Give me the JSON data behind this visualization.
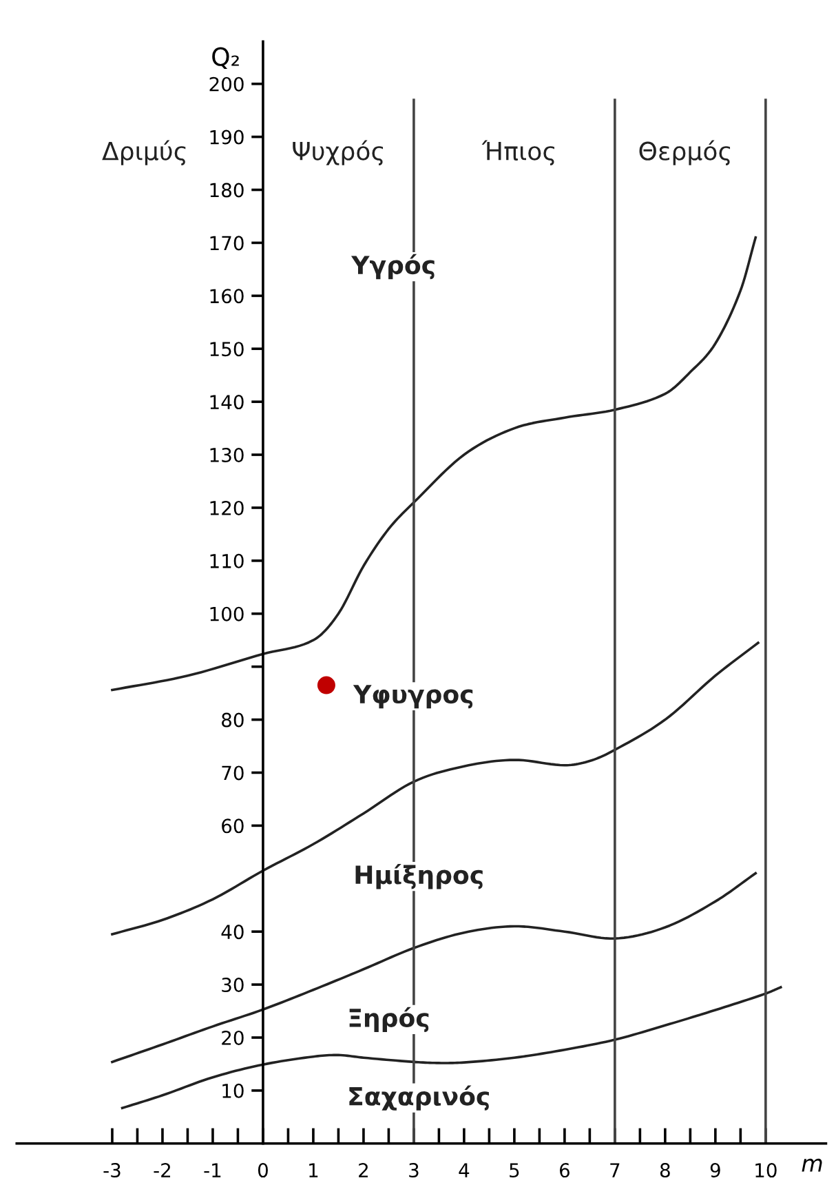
{
  "chart_data": {
    "type": "line",
    "xlabel": "m",
    "ylabel": "Q₂",
    "xlim": [
      -4.9,
      11.2
    ],
    "ylim": [
      0,
      208
    ],
    "xticks": [
      -3,
      {
        "value": -2.5,
        "label": null
      },
      -2,
      {
        "value": -1.5,
        "label": null
      },
      -1,
      {
        "value": -0.5,
        "label": null
      },
      0,
      {
        "value": 0.5,
        "label": null
      },
      1,
      {
        "value": 1.5,
        "label": null
      },
      2,
      {
        "value": 2.5,
        "label": null
      },
      3,
      {
        "value": 3.5,
        "label": null
      },
      4,
      {
        "value": 4.5,
        "label": null
      },
      5,
      {
        "value": 5.5,
        "label": null
      },
      6,
      {
        "value": 6.5,
        "label": null
      },
      7,
      {
        "value": 7.5,
        "label": null
      },
      8,
      {
        "value": 8.5,
        "label": null
      },
      9,
      {
        "value": 9.5,
        "label": null
      },
      10
    ],
    "yticks": [
      10,
      20,
      30,
      40,
      60,
      70,
      80,
      {
        "value": 90,
        "label": null
      },
      100,
      110,
      120,
      130,
      140,
      150,
      160,
      170,
      180,
      190,
      200
    ],
    "grid": false,
    "legend": false,
    "marker": "none",
    "line_style": "solid",
    "series": [
      {
        "color": "#222222",
        "x": [
          -3,
          -1.5,
          0,
          1,
          1.5,
          2,
          2.5,
          3,
          4,
          5,
          6,
          7,
          8,
          8.5,
          9,
          9.5,
          9.8
        ],
        "values": [
          85.6,
          88.3,
          92.4,
          95,
          100,
          109,
          116,
          121,
          130,
          135,
          137,
          138.5,
          141.5,
          145.6,
          151,
          161,
          171
        ]
      },
      {
        "color": "#222222",
        "x": [
          -3,
          -2,
          -1,
          0,
          1,
          2,
          3,
          4,
          5,
          6,
          6.5,
          7,
          8,
          9,
          9.85
        ],
        "values": [
          39.5,
          42.2,
          46.1,
          51.5,
          56.5,
          62.3,
          68.3,
          71.2,
          72.4,
          71.4,
          72.2,
          74.3,
          80,
          88.3,
          94.5
        ]
      },
      {
        "color": "#222222",
        "x": [
          -3,
          -2,
          -1,
          0,
          1,
          2,
          3,
          4,
          5,
          6,
          7,
          8,
          9,
          9.8
        ],
        "values": [
          15.4,
          18.7,
          22.1,
          25.3,
          29,
          32.9,
          36.9,
          39.8,
          41,
          40,
          38.7,
          40.8,
          45.7,
          51
        ]
      },
      {
        "color": "#222222",
        "x": [
          -2.8,
          -2,
          -1,
          0,
          1,
          1.5,
          2,
          3,
          3.5,
          4,
          5,
          6,
          7,
          8,
          9,
          10,
          10.3
        ],
        "values": [
          6.7,
          9.1,
          12.5,
          14.9,
          16.4,
          16.7,
          16.2,
          15.4,
          15.2,
          15.3,
          16.2,
          17.7,
          19.6,
          22.3,
          25.2,
          28.3,
          29.5
        ]
      },
      {
        "type": "scatter",
        "color": "#c00000",
        "marker": "circle",
        "x": [
          1.26
        ],
        "values": [
          86.5
        ]
      }
    ],
    "ref_lines": [
      {
        "axis": "x",
        "value": 3,
        "color": "#444444"
      },
      {
        "axis": "x",
        "value": 7,
        "color": "#444444"
      },
      {
        "axis": "x",
        "value": 10,
        "color": "#444444"
      }
    ],
    "annotations": [
      "Δριμύς",
      "Ψυχρός",
      "Ήπιος",
      "Θερμός",
      "Υγρός",
      "Υφυγρος",
      "Ημίξηρος",
      "Ξηρός",
      "Σαχαρινός"
    ]
  }
}
